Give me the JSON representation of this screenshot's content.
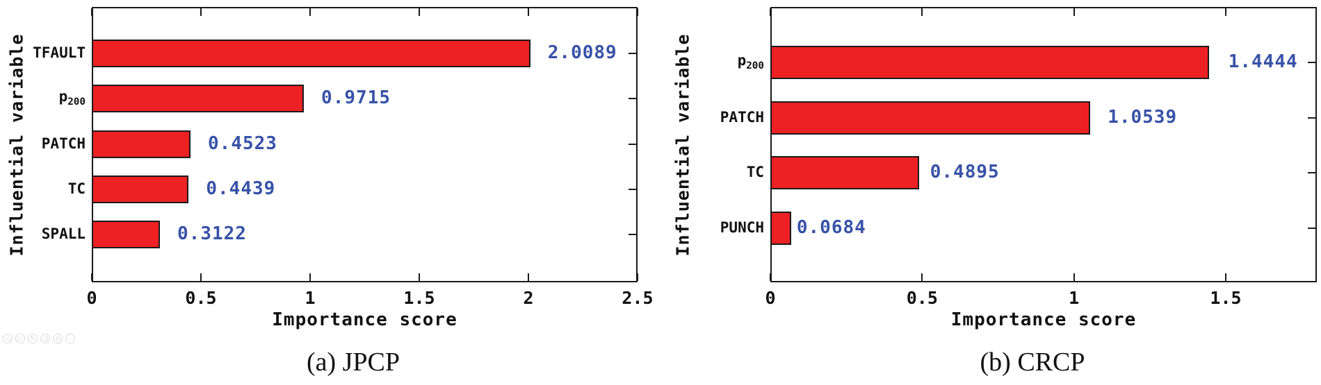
{
  "chart_data": [
    {
      "type": "bar",
      "orientation": "horizontal",
      "caption": "(a) JPCP",
      "xlabel": "Importance score",
      "ylabel": "Influential variable",
      "xlim": [
        0,
        2.5
      ],
      "xtick_values": [
        0,
        0.5,
        1,
        1.5,
        2,
        2.5
      ],
      "xtick_labels": [
        "0",
        "0.5",
        "1",
        "1.5",
        "2",
        "2.5"
      ],
      "categories": [
        "TFAULT",
        "p200",
        "PATCH",
        "TC",
        "SPALL"
      ],
      "categories_markup": [
        {
          "text": "TFAULT"
        },
        {
          "text": "p",
          "sub": "200"
        },
        {
          "text": "PATCH"
        },
        {
          "text": "TC"
        },
        {
          "text": "SPALL"
        }
      ],
      "values": [
        2.0089,
        0.9715,
        0.4523,
        0.4439,
        0.3122
      ],
      "value_labels": [
        "2.0089",
        "0.9715",
        "0.4523",
        "0.4439",
        "0.3122"
      ],
      "bar_color": "#ed2124",
      "bar_border_color": "#1a1a1a",
      "value_label_color": "#3752a8",
      "grid": false,
      "legend": "none"
    },
    {
      "type": "bar",
      "orientation": "horizontal",
      "caption": "(b) CRCP",
      "xlabel": "Importance score",
      "ylabel": "Influential variable",
      "xlim": [
        0,
        1.8
      ],
      "xtick_values": [
        0,
        0.5,
        1,
        1.5
      ],
      "xtick_labels": [
        "0",
        "0.5",
        "1",
        "1.5"
      ],
      "categories": [
        "p200",
        "PATCH",
        "TC",
        "PUNCH"
      ],
      "categories_markup": [
        {
          "text": "p",
          "sub": "200"
        },
        {
          "text": "PATCH"
        },
        {
          "text": "TC"
        },
        {
          "text": "PUNCH"
        }
      ],
      "values": [
        1.4444,
        1.0539,
        0.4895,
        0.0684
      ],
      "value_labels": [
        "1.4444",
        "1.0539",
        "0.4895",
        "0.0684"
      ],
      "bar_color": "#ed2124",
      "bar_border_color": "#1a1a1a",
      "value_label_color": "#3752a8",
      "grid": false,
      "legend": "none"
    }
  ],
  "viewer_toolbar": {
    "icons": [
      {
        "name": "previous",
        "glyph": "◁"
      },
      {
        "name": "next",
        "glyph": "▷"
      },
      {
        "name": "edit",
        "glyph": "✎"
      },
      {
        "name": "copy",
        "glyph": "❏"
      },
      {
        "name": "zoom",
        "glyph": "⊙"
      },
      {
        "name": "more",
        "glyph": "⋯"
      }
    ]
  }
}
